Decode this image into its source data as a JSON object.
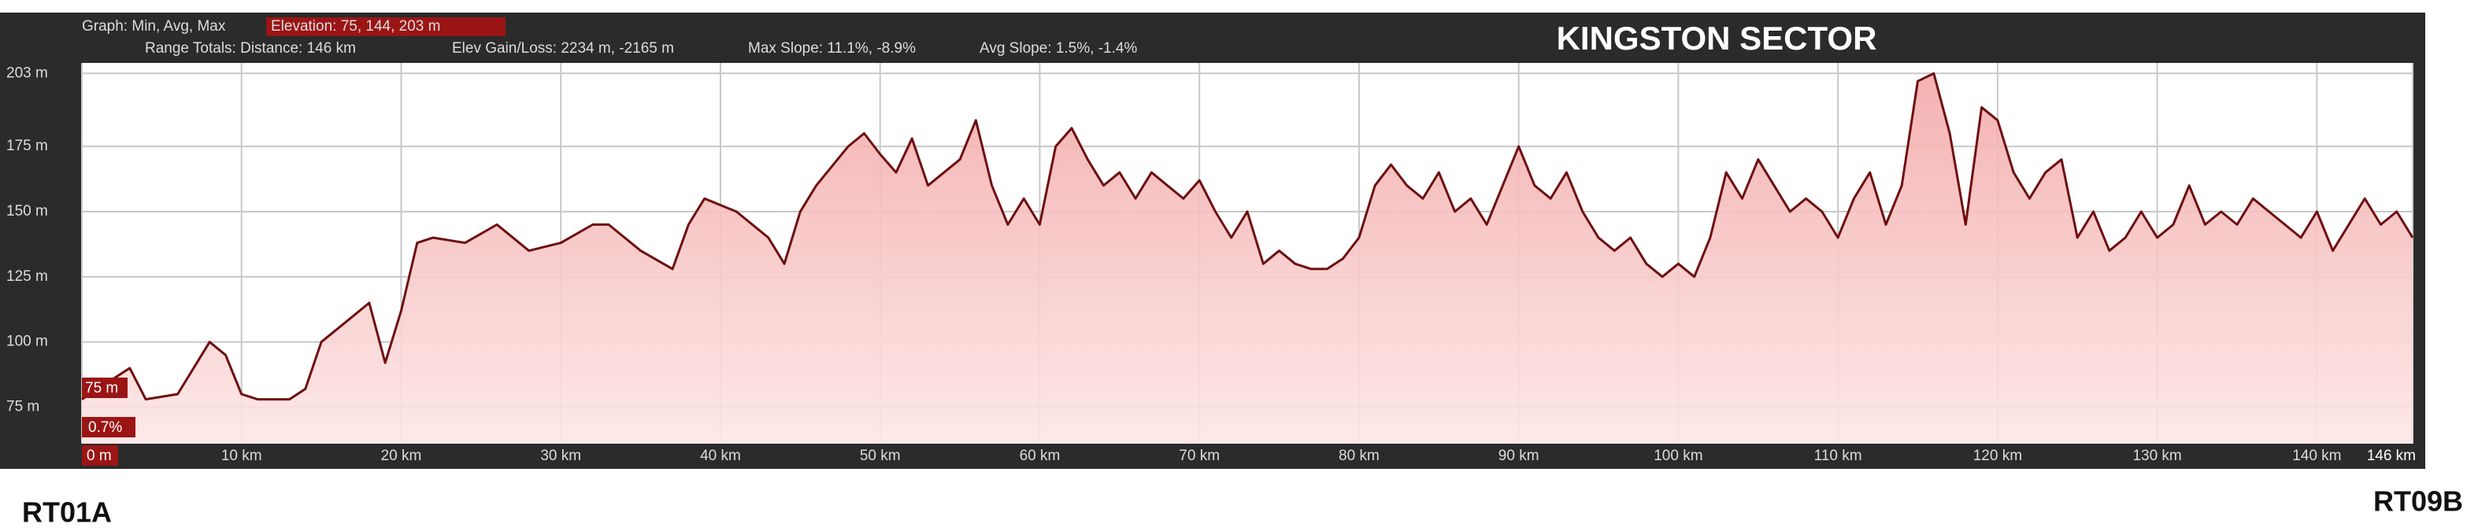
{
  "chart_data": {
    "type": "line",
    "title": "KINGSTON SECTOR",
    "header": {
      "graph": "Graph: Min, Avg, Max",
      "elevation": "Elevation: 75, 144, 203 m",
      "range": "Range Totals: Distance: 146 km",
      "gain_loss": "Elev Gain/Loss: 2234 m, -2165 m",
      "max_slope": "Max Slope: 11.1%, -8.9%",
      "avg_slope": "Avg Slope: 1.5%, -1.4%"
    },
    "cursor": {
      "elevation": "75 m",
      "slope": "0.7%"
    },
    "start_label": "RT01A",
    "end_label": "RT09B",
    "x": [
      0,
      3,
      4,
      6,
      8,
      9,
      10,
      11,
      12,
      13,
      14,
      15,
      17,
      18,
      19,
      20,
      21,
      22,
      24,
      26,
      28,
      30,
      32,
      33,
      35,
      37,
      38,
      39,
      41,
      43,
      44,
      45,
      46,
      48,
      49,
      50,
      51,
      52,
      53,
      55,
      56,
      57,
      58,
      59,
      60,
      61,
      62,
      63,
      64,
      65,
      66,
      67,
      68,
      69,
      70,
      71,
      72,
      73,
      74,
      75,
      76,
      77,
      78,
      79,
      80,
      81,
      82,
      83,
      84,
      85,
      86,
      87,
      88,
      89,
      90,
      91,
      92,
      93,
      94,
      95,
      96,
      97,
      98,
      99,
      100,
      101,
      102,
      103,
      104,
      105,
      106,
      107,
      108,
      109,
      110,
      111,
      112,
      113,
      114,
      115,
      116,
      117,
      118,
      119,
      120,
      121,
      122,
      123,
      124,
      125,
      126,
      127,
      128,
      129,
      130,
      131,
      132,
      133,
      134,
      135,
      136,
      137,
      138,
      139,
      140,
      141,
      142,
      143,
      144,
      145,
      146
    ],
    "series": [
      {
        "name": "Elevation",
        "color": "#6e0f0f",
        "fill": "#f6b4b4",
        "values": [
          78,
          90,
          78,
          80,
          100,
          95,
          80,
          78,
          78,
          78,
          82,
          100,
          110,
          115,
          92,
          112,
          138,
          140,
          138,
          145,
          135,
          138,
          145,
          145,
          135,
          128,
          145,
          155,
          150,
          140,
          130,
          150,
          160,
          175,
          180,
          172,
          165,
          178,
          160,
          170,
          185,
          160,
          145,
          155,
          145,
          175,
          182,
          170,
          160,
          165,
          155,
          165,
          160,
          155,
          162,
          150,
          140,
          150,
          130,
          135,
          130,
          128,
          128,
          132,
          140,
          160,
          168,
          160,
          155,
          165,
          150,
          155,
          145,
          160,
          175,
          160,
          155,
          165,
          150,
          140,
          135,
          140,
          130,
          125,
          130,
          125,
          140,
          165,
          155,
          170,
          160,
          150,
          155,
          150,
          140,
          155,
          165,
          145,
          160,
          200,
          203,
          180,
          145,
          190,
          185,
          165,
          155,
          165,
          170,
          140,
          150,
          135,
          140,
          150,
          140,
          145,
          160,
          145,
          150,
          145,
          155,
          150,
          145,
          140,
          150,
          135,
          145,
          155,
          145,
          150,
          140
        ]
      }
    ],
    "xlim": [
      0,
      146
    ],
    "ylim": [
      61,
      207
    ],
    "xticks": [
      {
        "value": 0,
        "label": "0 m"
      },
      {
        "value": 10,
        "label": "10 km"
      },
      {
        "value": 20,
        "label": "20 km"
      },
      {
        "value": 30,
        "label": "30 km"
      },
      {
        "value": 40,
        "label": "40 km"
      },
      {
        "value": 50,
        "label": "50 km"
      },
      {
        "value": 60,
        "label": "60 km"
      },
      {
        "value": 70,
        "label": "70 km"
      },
      {
        "value": 80,
        "label": "80 km"
      },
      {
        "value": 90,
        "label": "90 km"
      },
      {
        "value": 100,
        "label": "100 km"
      },
      {
        "value": 110,
        "label": "110 km"
      },
      {
        "value": 120,
        "label": "120 km"
      },
      {
        "value": 130,
        "label": "130 km"
      },
      {
        "value": 140,
        "label": "140 km"
      },
      {
        "value": 146,
        "label": "146 km"
      }
    ],
    "yticks": [
      {
        "value": 75,
        "label": "75 m"
      },
      {
        "value": 100,
        "label": "100 m"
      },
      {
        "value": 125,
        "label": "125 m"
      },
      {
        "value": 150,
        "label": "150 m"
      },
      {
        "value": 175,
        "label": "175 m"
      },
      {
        "value": 203,
        "label": "203 m"
      }
    ],
    "grid": true
  }
}
